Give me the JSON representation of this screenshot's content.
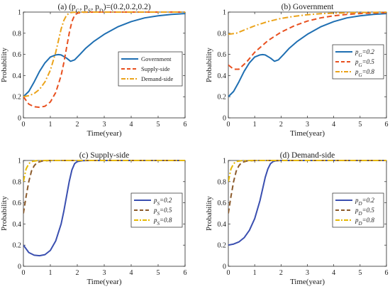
{
  "chart_data": [
    {
      "type": "line",
      "title": "(a) (pG, pS, pD)=(0.2,0.2,0.2)",
      "title_parts": [
        {
          "t": "(a) (p"
        },
        {
          "t": "G",
          "sub": true
        },
        {
          "t": ", p"
        },
        {
          "t": "S",
          "sub": true
        },
        {
          "t": ", p"
        },
        {
          "t": "D",
          "sub": true
        },
        {
          "t": ")=(0.2,0.2,0.2)"
        }
      ],
      "xlabel": "Time(year)",
      "ylabel": "Probability",
      "xlim": [
        0,
        6
      ],
      "ylim": [
        0,
        1
      ],
      "xticks": [
        "0",
        "1",
        "2",
        "3",
        "4",
        "5",
        "6"
      ],
      "yticks": [
        "0",
        "0.2",
        "0.4",
        "0.6",
        "0.8",
        "1"
      ],
      "grid": false,
      "legend_position": "center-right",
      "legend_style": "plain",
      "series": [
        {
          "name": "Government",
          "color": "#1f6fb2",
          "dash": "solid",
          "x": [
            0,
            0.2,
            0.4,
            0.6,
            0.8,
            1.0,
            1.2,
            1.3,
            1.4,
            1.6,
            1.75,
            1.9,
            2.1,
            2.3,
            2.6,
            3.0,
            3.5,
            4.0,
            4.5,
            5.0,
            5.5,
            6.0
          ],
          "y": [
            0.2,
            0.25,
            0.34,
            0.44,
            0.52,
            0.575,
            0.595,
            0.598,
            0.595,
            0.565,
            0.535,
            0.548,
            0.6,
            0.655,
            0.72,
            0.79,
            0.86,
            0.91,
            0.945,
            0.965,
            0.978,
            0.986
          ]
        },
        {
          "name": "Supply-side",
          "color": "#e8501f",
          "dash": "dashed",
          "x": [
            0,
            0.2,
            0.4,
            0.6,
            0.8,
            1.0,
            1.2,
            1.4,
            1.5,
            1.6,
            1.7,
            1.8,
            1.9,
            2.0,
            2.2,
            2.5,
            3.0,
            4.0,
            5.0,
            6.0
          ],
          "y": [
            0.2,
            0.13,
            0.105,
            0.1,
            0.11,
            0.15,
            0.24,
            0.4,
            0.52,
            0.66,
            0.8,
            0.91,
            0.97,
            0.99,
            0.998,
            1.0,
            1.0,
            1.0,
            1.0,
            1.0
          ]
        },
        {
          "name": "Demand-side",
          "color": "#eba31a",
          "dash": "dashdot",
          "x": [
            0,
            0.2,
            0.4,
            0.6,
            0.8,
            1.0,
            1.2,
            1.3,
            1.4,
            1.5,
            1.6,
            1.7,
            1.8,
            2.0,
            2.2,
            2.5,
            3.0,
            4.0,
            5.0,
            6.0
          ],
          "y": [
            0.2,
            0.21,
            0.23,
            0.27,
            0.34,
            0.45,
            0.62,
            0.73,
            0.84,
            0.92,
            0.97,
            0.99,
            0.997,
            1.0,
            1.0,
            1.0,
            1.0,
            1.0,
            1.0,
            1.0
          ]
        }
      ]
    },
    {
      "type": "line",
      "title": "(b) Government",
      "xlabel": "Time(year)",
      "ylabel": "Probability",
      "xlim": [
        0,
        6
      ],
      "ylim": [
        0,
        1
      ],
      "xticks": [
        "0",
        "1",
        "2",
        "3",
        "4",
        "5",
        "6"
      ],
      "yticks": [
        "0",
        "0.2",
        "0.4",
        "0.6",
        "0.8",
        "1"
      ],
      "grid": false,
      "legend_position": "center-right",
      "legend_style": "subscript",
      "series": [
        {
          "name": "pG=0.2",
          "sym": "p",
          "sub": "G",
          "val": "=0.2",
          "color": "#1f6fb2",
          "dash": "solid",
          "x": [
            0,
            0.2,
            0.4,
            0.6,
            0.8,
            1.0,
            1.2,
            1.3,
            1.4,
            1.6,
            1.75,
            1.9,
            2.1,
            2.3,
            2.6,
            3.0,
            3.5,
            4.0,
            4.5,
            5.0,
            5.5,
            6.0
          ],
          "y": [
            0.2,
            0.25,
            0.34,
            0.44,
            0.52,
            0.575,
            0.595,
            0.598,
            0.595,
            0.565,
            0.535,
            0.548,
            0.6,
            0.655,
            0.72,
            0.79,
            0.86,
            0.91,
            0.945,
            0.965,
            0.978,
            0.986
          ]
        },
        {
          "name": "pG=0.5",
          "sym": "p",
          "sub": "G",
          "val": "=0.5",
          "color": "#e8501f",
          "dash": "dashed",
          "x": [
            0,
            0.2,
            0.4,
            0.7,
            1.0,
            1.5,
            2.0,
            2.5,
            3.0,
            3.5,
            4.0,
            4.5,
            5.0,
            5.5,
            6.0
          ],
          "y": [
            0.5,
            0.46,
            0.46,
            0.53,
            0.62,
            0.73,
            0.81,
            0.87,
            0.915,
            0.945,
            0.965,
            0.978,
            0.986,
            0.991,
            0.995
          ]
        },
        {
          "name": "pG=0.8",
          "sym": "p",
          "sub": "G",
          "val": "=0.8",
          "color": "#eba31a",
          "dash": "dashdot",
          "x": [
            0,
            0.3,
            0.6,
            1.0,
            1.5,
            2.0,
            2.5,
            3.0,
            3.5,
            4.0,
            5.0,
            6.0
          ],
          "y": [
            0.79,
            0.8,
            0.83,
            0.87,
            0.91,
            0.94,
            0.96,
            0.975,
            0.985,
            0.99,
            0.996,
            0.999
          ]
        }
      ]
    },
    {
      "type": "line",
      "title": "(c) Supply-side",
      "xlabel": "Time(year)",
      "ylabel": "Probability",
      "xlim": [
        0,
        6
      ],
      "ylim": [
        0,
        1
      ],
      "xticks": [
        "0",
        "1",
        "2",
        "3",
        "4",
        "5",
        "6"
      ],
      "yticks": [
        "0",
        "0.2",
        "0.4",
        "0.6",
        "0.8",
        "1"
      ],
      "grid": false,
      "legend_position": "center-right",
      "legend_style": "subscript",
      "series": [
        {
          "name": "pS=0.2",
          "sym": "p",
          "sub": "S",
          "val": "=0.2",
          "color": "#3a4fb0",
          "dash": "solid",
          "x": [
            0,
            0.2,
            0.4,
            0.6,
            0.8,
            1.0,
            1.2,
            1.4,
            1.5,
            1.6,
            1.7,
            1.8,
            1.9,
            2.0,
            2.2,
            2.5,
            3.0,
            4.0,
            5.0,
            6.0
          ],
          "y": [
            0.2,
            0.13,
            0.105,
            0.1,
            0.11,
            0.15,
            0.24,
            0.4,
            0.52,
            0.66,
            0.8,
            0.91,
            0.97,
            0.99,
            0.998,
            1.0,
            1.0,
            1.0,
            1.0,
            1.0
          ]
        },
        {
          "name": "pS=0.5",
          "sym": "p",
          "sub": "S",
          "val": "=0.5",
          "color": "#8b5a2b",
          "dash": "dashed",
          "x": [
            0,
            0.1,
            0.2,
            0.3,
            0.4,
            0.5,
            0.7,
            1.0,
            2.0,
            3.0,
            4.0,
            5.0,
            6.0
          ],
          "y": [
            0.5,
            0.66,
            0.8,
            0.9,
            0.95,
            0.98,
            0.995,
            1.0,
            1.0,
            1.0,
            1.0,
            1.0,
            1.0
          ]
        },
        {
          "name": "pS=0.8",
          "sym": "p",
          "sub": "S",
          "val": "=0.8",
          "color": "#e6b800",
          "dash": "dashdot",
          "x": [
            0,
            0.1,
            0.2,
            0.3,
            0.5,
            1.0,
            2.0,
            3.0,
            4.0,
            5.0,
            6.0
          ],
          "y": [
            0.8,
            0.92,
            0.97,
            0.99,
            0.998,
            1.0,
            1.0,
            1.0,
            1.0,
            1.0,
            1.0
          ]
        }
      ]
    },
    {
      "type": "line",
      "title": "(d) Demand-side",
      "xlabel": "Time(year)",
      "ylabel": "Probability",
      "xlim": [
        0,
        6
      ],
      "ylim": [
        0,
        1
      ],
      "xticks": [
        "0",
        "1",
        "2",
        "3",
        "4",
        "5",
        "6"
      ],
      "yticks": [
        "0",
        "0.2",
        "0.4",
        "0.6",
        "0.8",
        "1"
      ],
      "grid": false,
      "legend_position": "center-right",
      "legend_style": "subscript",
      "series": [
        {
          "name": "pD=0.2",
          "sym": "p",
          "sub": "D",
          "val": "=0.2",
          "color": "#3a4fb0",
          "dash": "solid",
          "x": [
            0,
            0.2,
            0.4,
            0.6,
            0.8,
            1.0,
            1.2,
            1.3,
            1.4,
            1.5,
            1.6,
            1.7,
            1.8,
            2.0,
            2.2,
            2.5,
            3.0,
            4.0,
            5.0,
            6.0
          ],
          "y": [
            0.2,
            0.21,
            0.23,
            0.27,
            0.34,
            0.45,
            0.62,
            0.73,
            0.84,
            0.92,
            0.97,
            0.99,
            0.997,
            1.0,
            1.0,
            1.0,
            1.0,
            1.0,
            1.0,
            1.0
          ]
        },
        {
          "name": "pD=0.5",
          "sym": "p",
          "sub": "D",
          "val": "=0.5",
          "color": "#8b5a2b",
          "dash": "dashed",
          "x": [
            0,
            0.1,
            0.2,
            0.3,
            0.4,
            0.5,
            0.7,
            1.0,
            2.0,
            3.0,
            4.0,
            5.0,
            6.0
          ],
          "y": [
            0.5,
            0.66,
            0.8,
            0.9,
            0.95,
            0.98,
            0.995,
            1.0,
            1.0,
            1.0,
            1.0,
            1.0,
            1.0
          ]
        },
        {
          "name": "pD=0.8",
          "sym": "p",
          "sub": "D",
          "val": "=0.8",
          "color": "#e6b800",
          "dash": "dashdot",
          "x": [
            0,
            0.1,
            0.2,
            0.3,
            0.5,
            1.0,
            2.0,
            3.0,
            4.0,
            5.0,
            6.0
          ],
          "y": [
            0.8,
            0.92,
            0.97,
            0.99,
            0.998,
            1.0,
            1.0,
            1.0,
            1.0,
            1.0,
            1.0
          ]
        }
      ]
    }
  ]
}
